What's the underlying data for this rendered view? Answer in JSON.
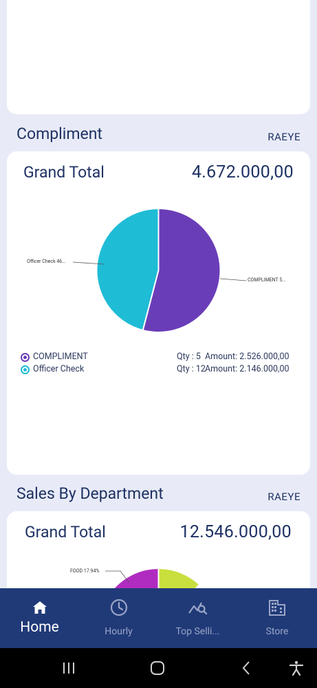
{
  "compliment": {
    "title": "Compliment",
    "link": "RAEYE",
    "grand_total_label": "Grand Total",
    "grand_total_value": "4.672.000,00",
    "pie_label_left": "Officer Check 46...",
    "pie_label_right": "COMPLIMENT 5...",
    "legend": [
      {
        "name": "COMPLIMENT",
        "qty": "Qty : 5",
        "amount": "Amount: 2.526.000,00",
        "color": "#6a3db8"
      },
      {
        "name": "Officer Check",
        "qty": "Qty : 12",
        "amount": "Amount: 2.146.000,00",
        "color": "#1fbcd6"
      }
    ]
  },
  "chart_data": [
    {
      "type": "pie",
      "categories": [
        "COMPLIMENT",
        "Officer Check"
      ],
      "values": [
        2526000,
        2146000
      ],
      "colors": [
        "#6a3db8",
        "#1fbcd6"
      ]
    },
    {
      "type": "pie",
      "categories": [
        "FOOD"
      ],
      "values": [
        17.94
      ],
      "colors": [
        "#b02cc0",
        "#c9df3e"
      ]
    }
  ],
  "dept": {
    "title": "Sales By Department",
    "link": "RAEYE",
    "grand_total_label": "Grand Total",
    "grand_total_value": "12.546.000,00",
    "pie_label": "FOOD 17.94%"
  },
  "nav": {
    "items": [
      {
        "label": "Home",
        "icon": "home-icon"
      },
      {
        "label": "Hourly",
        "icon": "clock-icon"
      },
      {
        "label": "Top Selli...",
        "icon": "chart-search-icon"
      },
      {
        "label": "Store",
        "icon": "building-icon"
      }
    ]
  }
}
